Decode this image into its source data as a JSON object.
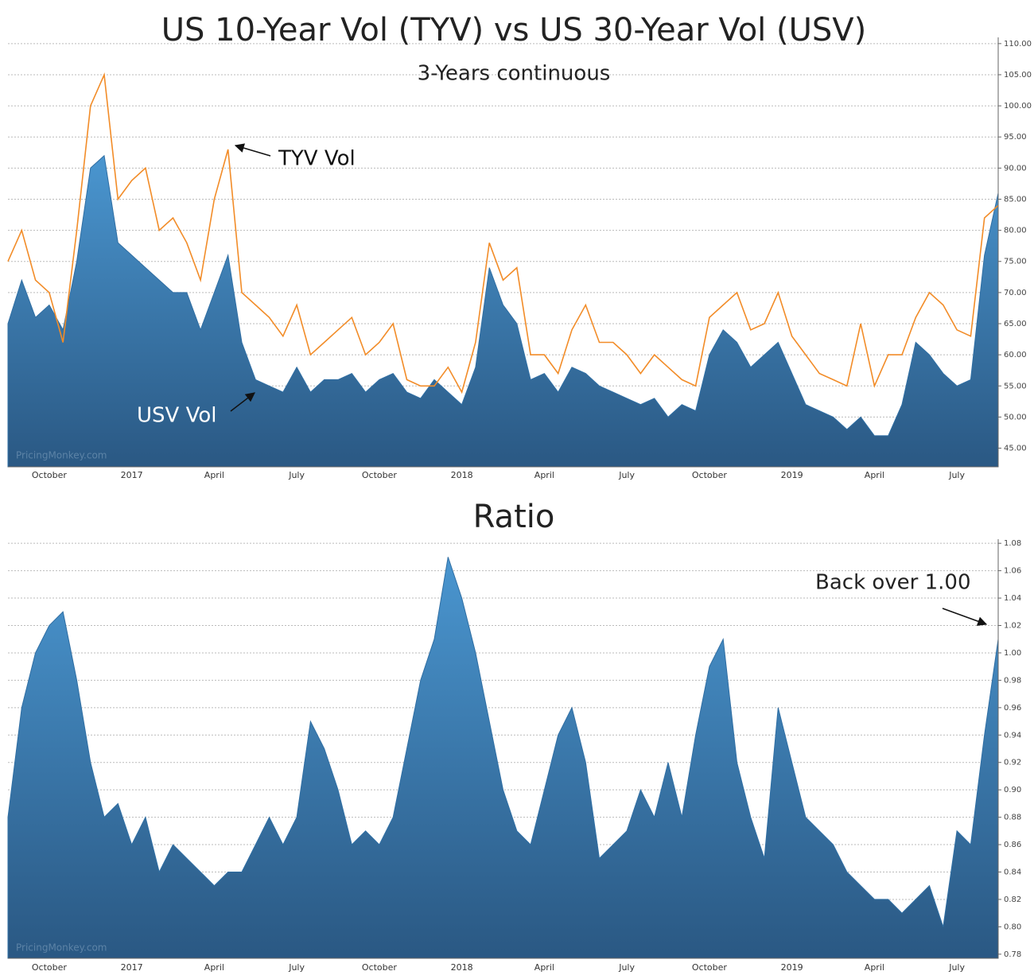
{
  "chart_data": [
    {
      "type": "area",
      "title": "US 10-Year Vol (TYV) vs US 30-Year Vol (USV)",
      "subtitle": "3-Years continuous",
      "watermark": "PricingMonkey.com",
      "categories": [
        null,
        null,
        null,
        "October",
        null,
        null,
        null,
        null,
        null,
        "2017",
        null,
        null,
        null,
        null,
        null,
        "April",
        null,
        null,
        null,
        null,
        null,
        "July",
        null,
        null,
        null,
        null,
        null,
        "October",
        null,
        null,
        null,
        null,
        null,
        "2018",
        null,
        null,
        null,
        null,
        null,
        "April",
        null,
        null,
        null,
        null,
        null,
        "July",
        null,
        null,
        null,
        null,
        null,
        "October",
        null,
        null,
        null,
        null,
        null,
        "2019",
        null,
        null,
        null,
        null,
        null,
        "April",
        null,
        null,
        null,
        null,
        null,
        "July",
        null,
        null,
        null
      ],
      "series": [
        {
          "name": "USV Vol",
          "type": "area",
          "color": "#2f6ea3",
          "values": [
            65,
            72,
            66,
            68,
            64,
            75,
            90,
            92,
            78,
            76,
            74,
            72,
            70,
            70,
            64,
            70,
            76,
            62,
            56,
            55,
            54,
            58,
            54,
            56,
            56,
            57,
            54,
            56,
            57,
            54,
            53,
            56,
            54,
            52,
            58,
            74,
            68,
            65,
            56,
            57,
            54,
            58,
            57,
            55,
            54,
            53,
            52,
            53,
            50,
            52,
            51,
            60,
            64,
            62,
            58,
            60,
            62,
            57,
            52,
            51,
            50,
            48,
            50,
            47,
            47,
            52,
            62,
            60,
            57,
            55,
            56,
            76,
            86
          ]
        },
        {
          "name": "TYV Vol",
          "type": "line",
          "color": "#f28c28",
          "values": [
            75,
            80,
            72,
            70,
            62,
            80,
            100,
            105,
            85,
            88,
            90,
            80,
            82,
            78,
            72,
            85,
            93,
            70,
            68,
            66,
            63,
            68,
            60,
            62,
            64,
            66,
            60,
            62,
            65,
            56,
            55,
            55,
            58,
            54,
            62,
            78,
            72,
            74,
            60,
            60,
            57,
            64,
            68,
            62,
            62,
            60,
            57,
            60,
            58,
            56,
            55,
            66,
            68,
            70,
            64,
            65,
            70,
            63,
            60,
            57,
            56,
            55,
            65,
            55,
            60,
            60,
            66,
            70,
            68,
            64,
            63,
            82,
            84
          ]
        }
      ],
      "ylim": [
        42,
        111
      ],
      "yticks": [
        {
          "value": 45,
          "label": "45.00"
        },
        {
          "value": 50,
          "label": "50.00"
        },
        {
          "value": 55,
          "label": "55.00"
        },
        {
          "value": 60,
          "label": "60.00"
        },
        {
          "value": 65,
          "label": "65.00"
        },
        {
          "value": 70,
          "label": "70.00"
        },
        {
          "value": 75,
          "label": "75.00"
        },
        {
          "value": 80,
          "label": "80.00"
        },
        {
          "value": 85,
          "label": "85.00"
        },
        {
          "value": 90,
          "label": "90.00"
        },
        {
          "value": 95,
          "label": "95.00"
        },
        {
          "value": 100,
          "label": "100.00"
        },
        {
          "value": 105,
          "label": "105.00"
        },
        {
          "value": 110,
          "label": "110.00"
        }
      ],
      "grid": true
    },
    {
      "type": "area",
      "title": "Ratio",
      "annotation": "Back over 1.00",
      "watermark": "PricingMonkey.com",
      "categories": [
        null,
        null,
        null,
        "October",
        null,
        null,
        null,
        null,
        null,
        "2017",
        null,
        null,
        null,
        null,
        null,
        "April",
        null,
        null,
        null,
        null,
        null,
        "July",
        null,
        null,
        null,
        null,
        null,
        "October",
        null,
        null,
        null,
        null,
        null,
        "2018",
        null,
        null,
        null,
        null,
        null,
        "April",
        null,
        null,
        null,
        null,
        null,
        "July",
        null,
        null,
        null,
        null,
        null,
        "October",
        null,
        null,
        null,
        null,
        null,
        "2019",
        null,
        null,
        null,
        null,
        null,
        "April",
        null,
        null,
        null,
        null,
        null,
        "July",
        null,
        null,
        null
      ],
      "series": [
        {
          "type": "area",
          "color": "#2f6ea3",
          "values": [
            0.88,
            0.96,
            1.0,
            1.02,
            1.03,
            0.98,
            0.92,
            0.88,
            0.89,
            0.86,
            0.88,
            0.84,
            0.86,
            0.85,
            0.84,
            0.83,
            0.84,
            0.84,
            0.86,
            0.88,
            0.86,
            0.88,
            0.95,
            0.93,
            0.9,
            0.86,
            0.87,
            0.86,
            0.88,
            0.93,
            0.98,
            1.01,
            1.07,
            1.04,
            1.0,
            0.95,
            0.9,
            0.87,
            0.86,
            0.9,
            0.94,
            0.96,
            0.92,
            0.85,
            0.86,
            0.87,
            0.9,
            0.88,
            0.92,
            0.88,
            0.94,
            0.99,
            1.01,
            0.92,
            0.88,
            0.85,
            0.96,
            0.92,
            0.88,
            0.87,
            0.86,
            0.84,
            0.83,
            0.82,
            0.82,
            0.81,
            0.82,
            0.83,
            0.8,
            0.87,
            0.86,
            0.94,
            1.01
          ]
        }
      ],
      "ylim": [
        0.777,
        1.083
      ],
      "yticks": [
        0.78,
        0.8,
        0.82,
        0.84,
        0.86,
        0.88,
        0.9,
        0.92,
        0.94,
        0.96,
        0.98,
        1,
        1.02,
        1.04,
        1.06,
        1.08
      ],
      "ytick_labels_fixed": true,
      "grid": true
    }
  ]
}
